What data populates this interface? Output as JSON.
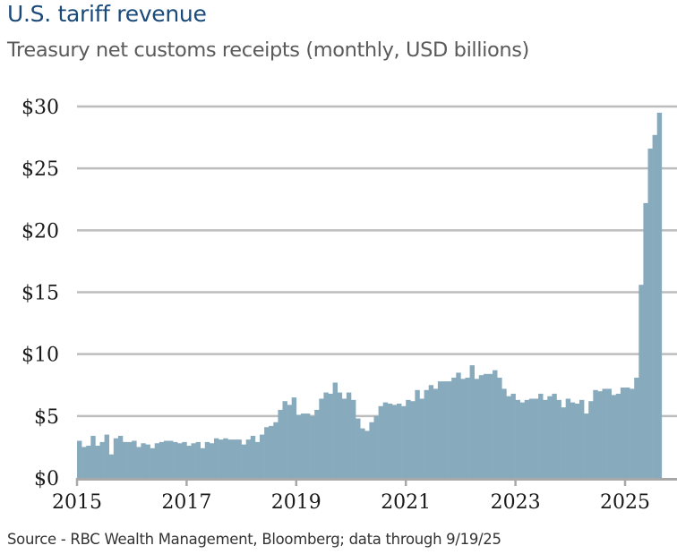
{
  "chart_data": {
    "type": "bar",
    "title": "U.S. tariff revenue",
    "subtitle": "Treasury net customs receipts (monthly, USD billions)",
    "xlabel": "",
    "ylabel": "",
    "ylim": [
      0,
      30
    ],
    "y_ticks": [
      0,
      5,
      10,
      15,
      20,
      25,
      30
    ],
    "y_tick_labels": [
      "$0",
      "$5",
      "$10",
      "$15",
      "$20",
      "$25",
      "$30"
    ],
    "x_ticks": [
      "2015",
      "2017",
      "2019",
      "2021",
      "2023",
      "2025"
    ],
    "grid": "horizontal",
    "start": "2015-01",
    "end": "2025-08",
    "frequency": "monthly",
    "bar_color": "#87abbd",
    "grid_color": "#bdbdbd",
    "series": [
      {
        "name": "Net customs receipts",
        "values": [
          3.0,
          2.5,
          2.6,
          3.4,
          2.6,
          2.9,
          3.5,
          1.9,
          3.2,
          3.4,
          2.9,
          2.9,
          3.0,
          2.5,
          2.8,
          2.7,
          2.4,
          2.8,
          2.9,
          3.0,
          3.0,
          2.9,
          2.8,
          2.9,
          2.6,
          2.8,
          2.9,
          2.4,
          2.9,
          2.8,
          3.2,
          3.1,
          3.2,
          3.1,
          3.1,
          3.1,
          2.7,
          3.1,
          3.4,
          2.9,
          3.5,
          4.1,
          4.2,
          4.5,
          5.5,
          6.2,
          5.9,
          6.5,
          5.1,
          5.2,
          5.2,
          5.0,
          5.5,
          6.4,
          6.9,
          6.8,
          7.7,
          6.9,
          6.4,
          6.9,
          6.3,
          4.8,
          4.0,
          3.8,
          4.5,
          5.0,
          5.8,
          6.1,
          6.0,
          5.9,
          6.0,
          5.8,
          6.3,
          6.2,
          7.1,
          6.4,
          7.1,
          7.5,
          7.2,
          7.8,
          7.8,
          7.8,
          8.1,
          8.5,
          8.0,
          8.1,
          9.1,
          8.0,
          8.3,
          8.4,
          8.4,
          8.7,
          8.1,
          7.2,
          6.6,
          6.8,
          6.3,
          6.1,
          6.3,
          6.4,
          6.4,
          6.8,
          6.3,
          6.6,
          6.8,
          6.3,
          5.7,
          6.4,
          6.1,
          6.0,
          6.3,
          5.2,
          6.2,
          7.1,
          7.0,
          7.2,
          7.2,
          6.7,
          6.8,
          7.3,
          7.3,
          7.2,
          8.1,
          15.6,
          22.2,
          26.6,
          27.7,
          29.5
        ]
      }
    ],
    "source": "Source - RBC Wealth Management, Bloomberg; data through 9/19/25"
  }
}
